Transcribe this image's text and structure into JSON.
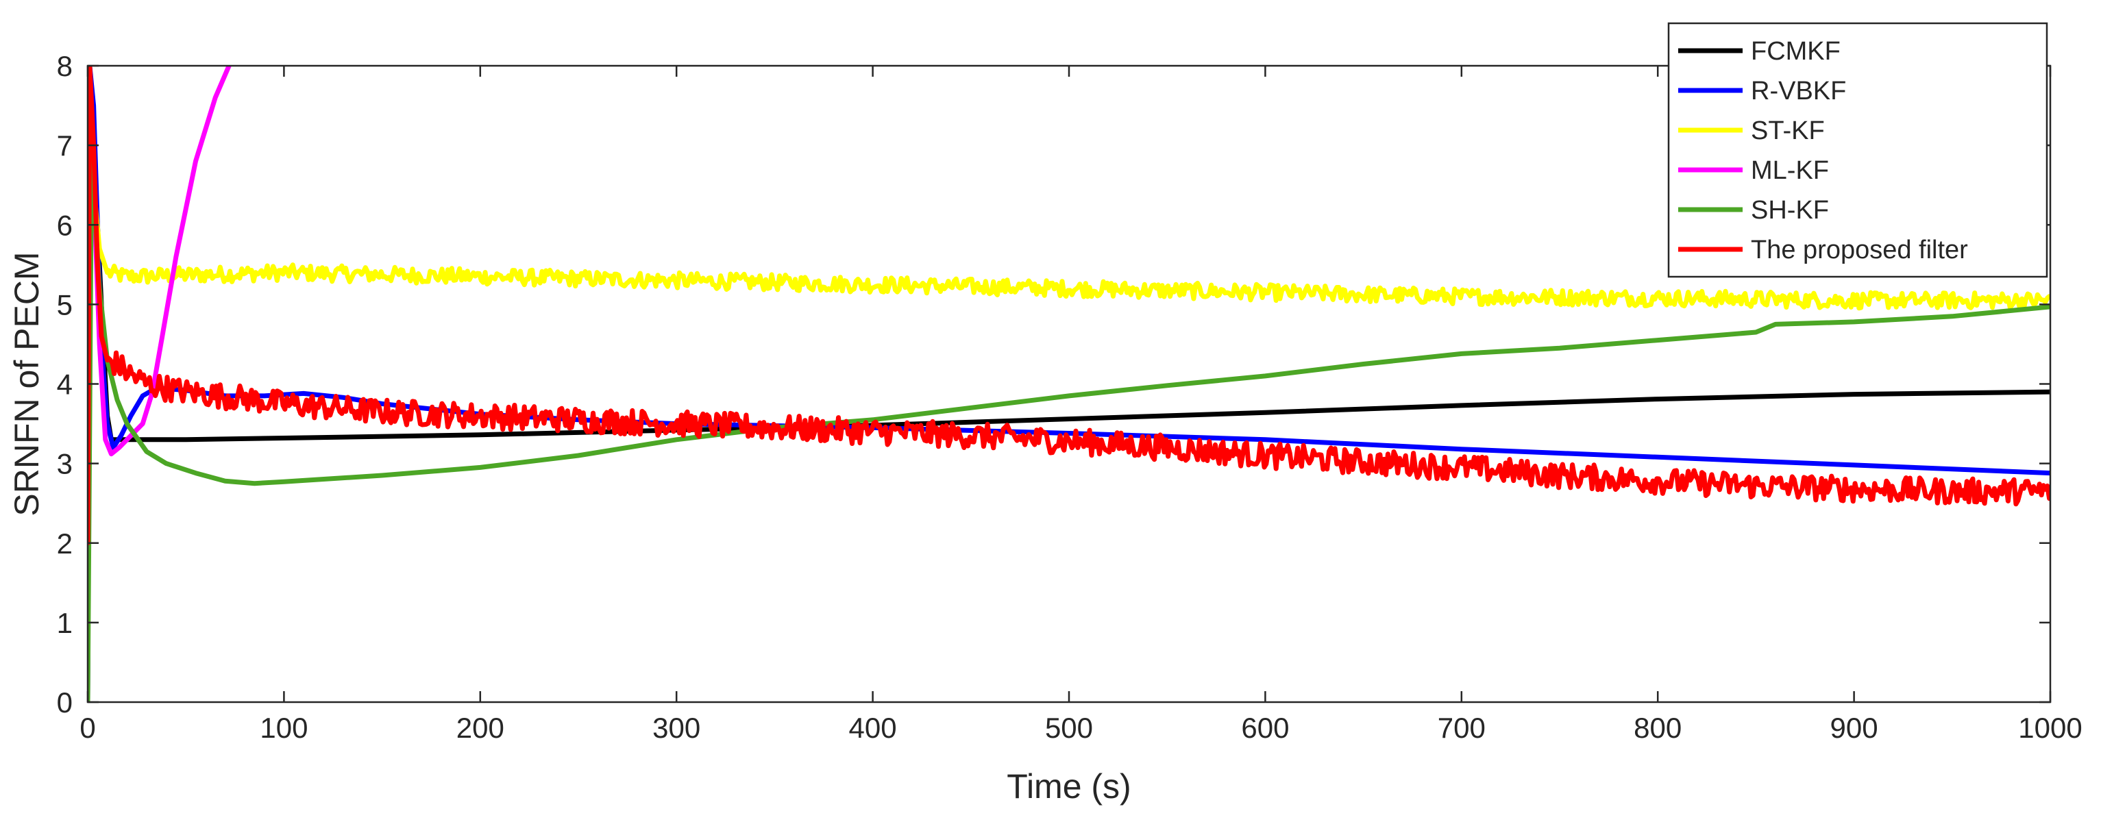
{
  "chart_data": {
    "type": "line",
    "xlabel": "Time (s)",
    "ylabel": "SRNFN of PECM",
    "xlim": [
      0,
      1000
    ],
    "ylim": [
      0,
      8
    ],
    "xticks": [
      "0",
      "100",
      "200",
      "300",
      "400",
      "500",
      "600",
      "700",
      "800",
      "900",
      "1000"
    ],
    "yticks": [
      "0",
      "1",
      "2",
      "3",
      "4",
      "5",
      "6",
      "7",
      "8"
    ],
    "grid": false,
    "legend_position": "top-right",
    "series": [
      {
        "name": "FCMKF",
        "color": "#000000",
        "noise": 0,
        "x": [
          0,
          1,
          3,
          5,
          8,
          10,
          12,
          15,
          20,
          50,
          100,
          200,
          300,
          400,
          500,
          600,
          700,
          800,
          900,
          1000
        ],
        "values": [
          0,
          8,
          7,
          6,
          4.5,
          3.6,
          3.3,
          3.3,
          3.3,
          3.3,
          3.32,
          3.36,
          3.42,
          3.48,
          3.56,
          3.64,
          3.73,
          3.81,
          3.87,
          3.9
        ]
      },
      {
        "name": "R-VBKF",
        "color": "#0000ff",
        "noise": 0,
        "x": [
          0,
          1,
          3,
          5,
          7,
          10,
          13,
          17,
          22,
          28,
          35,
          50,
          70,
          90,
          110,
          130,
          150,
          200,
          250,
          300,
          400,
          500,
          600,
          700,
          800,
          900,
          1000
        ],
        "values": [
          0,
          8,
          7.5,
          6,
          4.5,
          3.5,
          3.2,
          3.35,
          3.6,
          3.85,
          3.95,
          3.92,
          3.85,
          3.85,
          3.88,
          3.83,
          3.75,
          3.62,
          3.55,
          3.5,
          3.45,
          3.38,
          3.3,
          3.18,
          3.08,
          2.98,
          2.88
        ]
      },
      {
        "name": "ST-KF",
        "color": "#ffff00",
        "noise": 0.1,
        "x": [
          0,
          1,
          3,
          6,
          10,
          20,
          100,
          200,
          300,
          400,
          500,
          600,
          700,
          800,
          900,
          1000
        ],
        "values": [
          1.7,
          7.5,
          6.5,
          5.7,
          5.4,
          5.35,
          5.4,
          5.35,
          5.3,
          5.25,
          5.2,
          5.15,
          5.1,
          5.08,
          5.05,
          5.05
        ]
      },
      {
        "name": "ML-KF",
        "color": "#ff00ff",
        "noise": 0,
        "x": [
          0,
          1,
          3,
          6,
          9,
          12,
          16,
          22,
          28,
          33,
          38,
          45,
          55,
          65,
          72
        ],
        "values": [
          1.8,
          8,
          6.5,
          4.5,
          3.3,
          3.12,
          3.2,
          3.35,
          3.5,
          3.9,
          4.6,
          5.6,
          6.8,
          7.6,
          8
        ]
      },
      {
        "name": "SH-KF",
        "color": "#4ca625",
        "noise": 0,
        "x": [
          0,
          2,
          4,
          6,
          10,
          15,
          20,
          30,
          40,
          55,
          70,
          85,
          100,
          150,
          200,
          250,
          300,
          350,
          400,
          450,
          500,
          550,
          600,
          650,
          700,
          750,
          800,
          850,
          860,
          900,
          950,
          1000
        ],
        "values": [
          0,
          7,
          6,
          5.2,
          4.3,
          3.8,
          3.5,
          3.15,
          3,
          2.88,
          2.78,
          2.75,
          2.77,
          2.85,
          2.95,
          3.1,
          3.3,
          3.45,
          3.55,
          3.7,
          3.85,
          3.98,
          4.1,
          4.25,
          4.38,
          4.45,
          4.55,
          4.65,
          4.75,
          4.78,
          4.85,
          4.97
        ]
      },
      {
        "name": "The proposed filter",
        "color": "#ff0000",
        "noise": 0.16,
        "x": [
          0,
          1,
          3,
          5,
          7,
          10,
          15,
          20,
          30,
          50,
          80,
          100,
          150,
          200,
          250,
          300,
          350,
          400,
          450,
          500,
          550,
          600,
          650,
          700,
          750,
          800,
          850,
          900,
          950,
          1000
        ],
        "values": [
          2,
          8,
          7,
          5.5,
          4.6,
          4.3,
          4.25,
          4.15,
          4,
          3.9,
          3.82,
          3.75,
          3.65,
          3.6,
          3.55,
          3.5,
          3.45,
          3.4,
          3.35,
          3.28,
          3.2,
          3.1,
          3.02,
          2.95,
          2.85,
          2.78,
          2.72,
          2.68,
          2.65,
          2.65
        ]
      }
    ]
  }
}
